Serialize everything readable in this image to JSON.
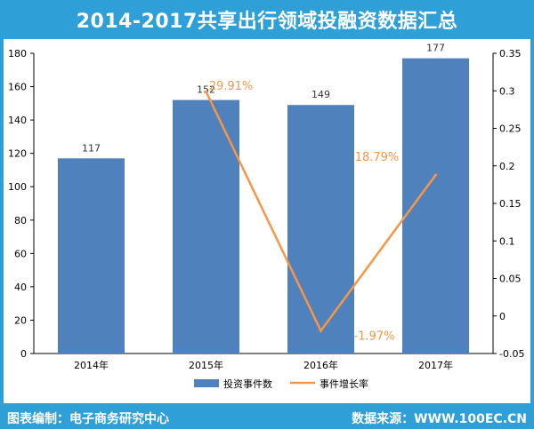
{
  "title": "2014-2017共享出行领域投融资数据汇总",
  "footer": {
    "left": "图表编制：电子商务研究中心",
    "right": "数据来源：WWW.100EC.CN"
  },
  "colors": {
    "frame": "#2f9fd7",
    "bar": "#4f81bd",
    "line": "#f79646",
    "label_line": "#f79646"
  },
  "chart_data": {
    "type": "bar",
    "categories": [
      "2014年",
      "2015年",
      "2016年",
      "2017年"
    ],
    "series": [
      {
        "name": "投资事件数",
        "type": "bar",
        "axis": "left",
        "values": [
          117,
          152,
          149,
          177
        ]
      },
      {
        "name": "事件增长率",
        "type": "line",
        "axis": "right",
        "values": [
          null,
          0.2991,
          -0.0197,
          0.1879
        ]
      }
    ],
    "bar_labels": [
      "117",
      "152",
      "149",
      "177"
    ],
    "line_labels": [
      "",
      "29.91%",
      "-1.97%",
      "18.79%"
    ],
    "y_left": {
      "min": 0,
      "max": 180,
      "ticks": [
        "0",
        "20",
        "40",
        "60",
        "80",
        "100",
        "120",
        "140",
        "160",
        "180"
      ]
    },
    "y_right": {
      "min": -0.05,
      "max": 0.35,
      "ticks": [
        "-0.05",
        "0",
        "0.05",
        "0.1",
        "0.15",
        "0.2",
        "0.25",
        "0.3",
        "0.35"
      ]
    },
    "grid": false,
    "legend_position": "bottom"
  }
}
